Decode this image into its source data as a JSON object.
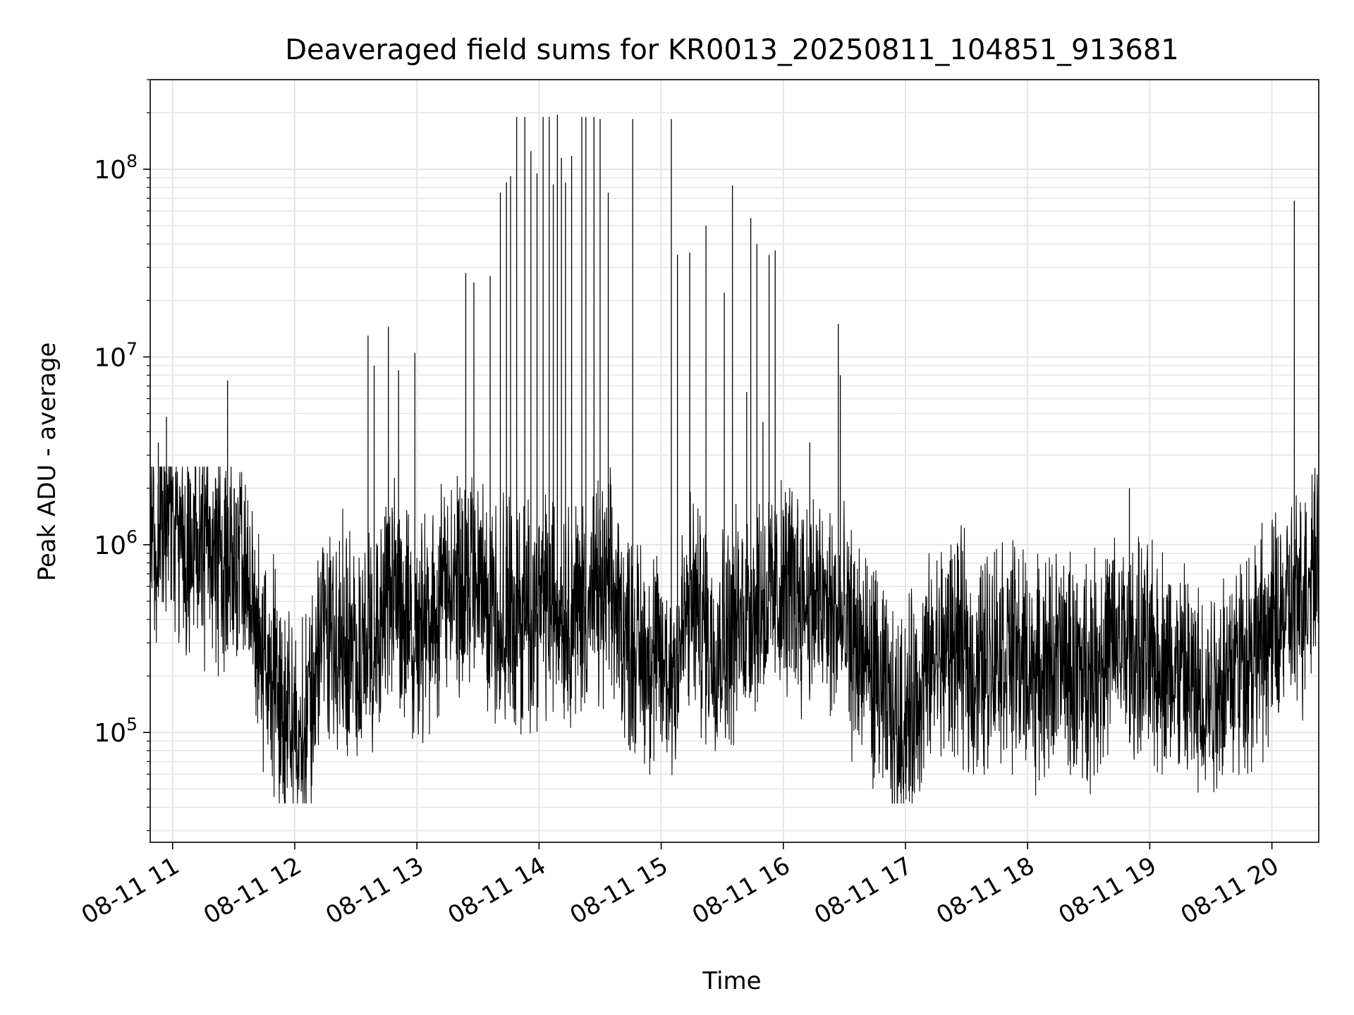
{
  "chart_data": {
    "type": "line",
    "title": "Deaveraged field sums for KR0013_20250811_104851_913681",
    "xlabel": "Time",
    "ylabel": "Peak ADU - average",
    "yscale": "log",
    "grid": true,
    "line_color": "#000000",
    "grid_color": "#e6e6e6",
    "xlim": [
      "2025-08-11 10:49",
      "2025-08-11 20:23"
    ],
    "ylim": [
      26000,
      300000000
    ],
    "x_ticks": [
      {
        "value": "2025-08-11 11:00",
        "label": "08-11 11"
      },
      {
        "value": "2025-08-11 12:00",
        "label": "08-11 12"
      },
      {
        "value": "2025-08-11 13:00",
        "label": "08-11 13"
      },
      {
        "value": "2025-08-11 14:00",
        "label": "08-11 14"
      },
      {
        "value": "2025-08-11 15:00",
        "label": "08-11 15"
      },
      {
        "value": "2025-08-11 16:00",
        "label": "08-11 16"
      },
      {
        "value": "2025-08-11 17:00",
        "label": "08-11 17"
      },
      {
        "value": "2025-08-11 18:00",
        "label": "08-11 18"
      },
      {
        "value": "2025-08-11 19:00",
        "label": "08-11 19"
      },
      {
        "value": "2025-08-11 20:00",
        "label": "08-11 20"
      }
    ],
    "y_ticks": [
      {
        "value": 100000,
        "base": "10",
        "exp": "5"
      },
      {
        "value": 1000000,
        "base": "10",
        "exp": "6"
      },
      {
        "value": 10000000,
        "base": "10",
        "exp": "7"
      },
      {
        "value": 100000000,
        "base": "10",
        "exp": "8"
      }
    ],
    "series": [
      {
        "x": [
          "2025-08-11 10:49",
          "2025-08-11 10:56",
          "2025-08-11 11:05",
          "2025-08-11 11:15",
          "2025-08-11 11:25",
          "2025-08-11 11:35",
          "2025-08-11 11:45",
          "2025-08-11 11:55",
          "2025-08-11 12:05",
          "2025-08-11 12:15",
          "2025-08-11 12:25",
          "2025-08-11 12:35",
          "2025-08-11 12:45",
          "2025-08-11 12:55",
          "2025-08-11 13:05",
          "2025-08-11 13:15",
          "2025-08-11 13:25",
          "2025-08-11 13:35",
          "2025-08-11 13:45",
          "2025-08-11 13:55",
          "2025-08-11 14:05",
          "2025-08-11 14:15",
          "2025-08-11 14:25",
          "2025-08-11 14:35",
          "2025-08-11 14:45",
          "2025-08-11 14:55",
          "2025-08-11 15:05",
          "2025-08-11 15:15",
          "2025-08-11 15:25",
          "2025-08-11 15:35",
          "2025-08-11 15:45",
          "2025-08-11 15:55",
          "2025-08-11 16:05",
          "2025-08-11 16:15",
          "2025-08-11 16:25",
          "2025-08-11 16:35",
          "2025-08-11 16:45",
          "2025-08-11 16:55",
          "2025-08-11 17:05",
          "2025-08-11 17:15",
          "2025-08-11 17:25",
          "2025-08-11 17:35",
          "2025-08-11 17:45",
          "2025-08-11 17:55",
          "2025-08-11 18:05",
          "2025-08-11 18:15",
          "2025-08-11 18:25",
          "2025-08-11 18:35",
          "2025-08-11 18:45",
          "2025-08-11 18:55",
          "2025-08-11 19:05",
          "2025-08-11 19:15",
          "2025-08-11 19:25",
          "2025-08-11 19:35",
          "2025-08-11 19:45",
          "2025-08-11 19:55",
          "2025-08-11 20:05",
          "2025-08-11 20:15",
          "2025-08-11 20:23"
        ],
        "y": [
          1000000,
          1300000,
          900000,
          1000000,
          800000,
          700000,
          250000,
          120000,
          100000,
          400000,
          300000,
          250000,
          600000,
          350000,
          350000,
          600000,
          600000,
          500000,
          400000,
          450000,
          500000,
          450000,
          500000,
          550000,
          300000,
          250000,
          200000,
          500000,
          300000,
          350000,
          500000,
          500000,
          600000,
          500000,
          400000,
          300000,
          200000,
          100000,
          150000,
          250000,
          300000,
          200000,
          300000,
          250000,
          200000,
          250000,
          200000,
          250000,
          300000,
          250000,
          250000,
          200000,
          150000,
          200000,
          250000,
          300000,
          400000,
          500000,
          1200000
        ]
      }
    ],
    "spikes": [
      {
        "x": "2025-08-11 10:53",
        "y": 3500000
      },
      {
        "x": "2025-08-11 10:57",
        "y": 4800000
      },
      {
        "x": "2025-08-11 11:27",
        "y": 7500000
      },
      {
        "x": "2025-08-11 12:36",
        "y": 13000000
      },
      {
        "x": "2025-08-11 12:39",
        "y": 9000000
      },
      {
        "x": "2025-08-11 12:46",
        "y": 14500000
      },
      {
        "x": "2025-08-11 12:51",
        "y": 8500000
      },
      {
        "x": "2025-08-11 12:59",
        "y": 10500000
      },
      {
        "x": "2025-08-11 13:24",
        "y": 28000000
      },
      {
        "x": "2025-08-11 13:28",
        "y": 25000000
      },
      {
        "x": "2025-08-11 13:36",
        "y": 27000000
      },
      {
        "x": "2025-08-11 13:41",
        "y": 75000000
      },
      {
        "x": "2025-08-11 13:44",
        "y": 85000000
      },
      {
        "x": "2025-08-11 13:46",
        "y": 92000000
      },
      {
        "x": "2025-08-11 13:49",
        "y": 190000000
      },
      {
        "x": "2025-08-11 13:53",
        "y": 190000000
      },
      {
        "x": "2025-08-11 13:56",
        "y": 125000000
      },
      {
        "x": "2025-08-11 13:59",
        "y": 95000000
      },
      {
        "x": "2025-08-11 14:02",
        "y": 190000000
      },
      {
        "x": "2025-08-11 14:05",
        "y": 190000000
      },
      {
        "x": "2025-08-11 14:07",
        "y": 83000000
      },
      {
        "x": "2025-08-11 14:09",
        "y": 195000000
      },
      {
        "x": "2025-08-11 14:11",
        "y": 115000000
      },
      {
        "x": "2025-08-11 14:13",
        "y": 85000000
      },
      {
        "x": "2025-08-11 14:16",
        "y": 118000000
      },
      {
        "x": "2025-08-11 14:21",
        "y": 190000000
      },
      {
        "x": "2025-08-11 14:23",
        "y": 190000000
      },
      {
        "x": "2025-08-11 14:27",
        "y": 190000000
      },
      {
        "x": "2025-08-11 14:30",
        "y": 185000000
      },
      {
        "x": "2025-08-11 14:34",
        "y": 75000000
      },
      {
        "x": "2025-08-11 14:46",
        "y": 185000000
      },
      {
        "x": "2025-08-11 15:05",
        "y": 185000000
      },
      {
        "x": "2025-08-11 15:08",
        "y": 35000000
      },
      {
        "x": "2025-08-11 15:14",
        "y": 36000000
      },
      {
        "x": "2025-08-11 15:22",
        "y": 50000000
      },
      {
        "x": "2025-08-11 15:31",
        "y": 22000000
      },
      {
        "x": "2025-08-11 15:35",
        "y": 82000000
      },
      {
        "x": "2025-08-11 15:42",
        "y": 6500000
      },
      {
        "x": "2025-08-11 15:44",
        "y": 55000000
      },
      {
        "x": "2025-08-11 15:47",
        "y": 40000000
      },
      {
        "x": "2025-08-11 15:50",
        "y": 4500000
      },
      {
        "x": "2025-08-11 15:53",
        "y": 35000000
      },
      {
        "x": "2025-08-11 15:56",
        "y": 37000000
      },
      {
        "x": "2025-08-11 16:13",
        "y": 3500000
      },
      {
        "x": "2025-08-11 16:27",
        "y": 15000000
      },
      {
        "x": "2025-08-11 16:28",
        "y": 8000000
      },
      {
        "x": "2025-08-11 18:50",
        "y": 2000000
      },
      {
        "x": "2025-08-11 20:11",
        "y": 68000000
      },
      {
        "x": "2025-08-11 20:21",
        "y": 2100000
      }
    ]
  }
}
